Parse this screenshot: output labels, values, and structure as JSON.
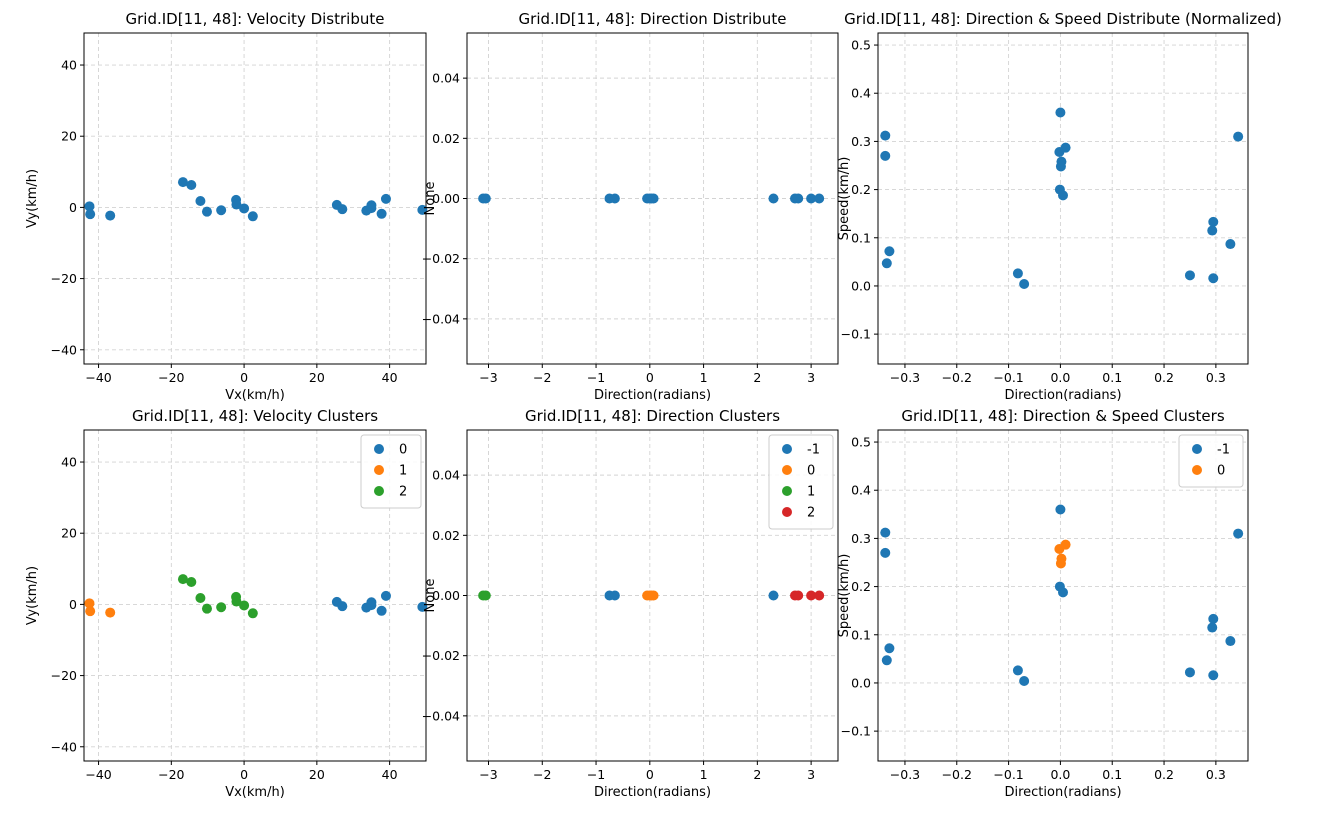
{
  "colors": {
    "c0": "#1f77b4",
    "c1": "#ff7f0e",
    "c2": "#2ca02c",
    "c3": "#d62728",
    "grid": "#d3d3d3"
  },
  "chart_data": [
    {
      "id": "vel-dist",
      "type": "scatter",
      "title": "Grid.ID[11, 48]: Velocity Distribute",
      "xlabel": "Vx(km/h)",
      "ylabel": "Vy(km/h)",
      "xlim": [
        -44,
        50
      ],
      "ylim": [
        -44,
        49
      ],
      "xticks": [
        -40,
        -20,
        0,
        20,
        40
      ],
      "yticks": [
        -40,
        -20,
        0,
        20,
        40
      ],
      "grid": true,
      "legend": null,
      "series": [
        {
          "color": "c0",
          "points": [
            [
              -42.5,
              0.3
            ],
            [
              -42.3,
              -1.9
            ],
            [
              -36.8,
              -2.3
            ],
            [
              -16.8,
              7.1
            ],
            [
              -14.5,
              6.3
            ],
            [
              -12,
              1.8
            ],
            [
              -10.2,
              -1.2
            ],
            [
              -6.3,
              -0.8
            ],
            [
              -2.2,
              2.1
            ],
            [
              -2.1,
              0.8
            ],
            [
              0,
              -0.3
            ],
            [
              2.4,
              -2.5
            ],
            [
              25.5,
              0.7
            ],
            [
              27,
              -0.5
            ],
            [
              33.6,
              -0.9
            ],
            [
              35,
              0.6
            ],
            [
              35,
              -0.2
            ],
            [
              37.8,
              -1.8
            ],
            [
              39,
              2.4
            ],
            [
              49,
              -0.7
            ]
          ]
        }
      ]
    },
    {
      "id": "dir-dist",
      "type": "scatter",
      "title": "Grid.ID[11, 48]: Direction Distribute",
      "xlabel": "Direction(radians)",
      "ylabel": "None",
      "xlim": [
        -3.4,
        3.5
      ],
      "ylim": [
        -0.055,
        0.055
      ],
      "xticks": [
        -3,
        -2,
        -1,
        0,
        1,
        2,
        3
      ],
      "yticks": [
        -0.04,
        -0.02,
        0.0,
        0.02,
        0.04
      ],
      "ytickfmt": 2,
      "grid": true,
      "legend": null,
      "series": [
        {
          "color": "c0",
          "points": [
            [
              -3.1,
              0
            ],
            [
              -3.05,
              0
            ],
            [
              -0.75,
              0
            ],
            [
              -0.65,
              0
            ],
            [
              -0.05,
              0
            ],
            [
              0,
              0
            ],
            [
              0.03,
              0
            ],
            [
              0.07,
              0
            ],
            [
              2.3,
              0
            ],
            [
              2.7,
              0
            ],
            [
              2.76,
              0
            ],
            [
              3.0,
              0
            ],
            [
              3.15,
              0
            ]
          ]
        }
      ]
    },
    {
      "id": "dirspeed-dist",
      "type": "scatter",
      "title": "Grid.ID[11, 48]: Direction & Speed Distribute (Normalized)",
      "xlabel": "Direction(radians)",
      "ylabel": "Speed(km/h)",
      "xlim": [
        -0.352,
        0.362
      ],
      "ylim": [
        -0.162,
        0.525
      ],
      "xticks": [
        -0.3,
        -0.2,
        -0.1,
        0.0,
        0.1,
        0.2,
        0.3
      ],
      "yticks": [
        -0.1,
        0.0,
        0.1,
        0.2,
        0.3,
        0.4,
        0.5
      ],
      "xtickfmt": 1,
      "ytickfmt": 1,
      "grid": true,
      "legend": null,
      "series": [
        {
          "color": "c0",
          "points": [
            [
              -0.338,
              0.312
            ],
            [
              -0.338,
              0.27
            ],
            [
              -0.33,
              0.072
            ],
            [
              -0.335,
              0.047
            ],
            [
              -0.082,
              0.026
            ],
            [
              -0.07,
              0.004
            ],
            [
              0.0,
              0.36
            ],
            [
              -0.002,
              0.278
            ],
            [
              0.01,
              0.287
            ],
            [
              0.002,
              0.258
            ],
            [
              0.001,
              0.248
            ],
            [
              -0.001,
              0.2
            ],
            [
              0.005,
              0.188
            ],
            [
              0.25,
              0.022
            ],
            [
              0.295,
              0.133
            ],
            [
              0.293,
              0.115
            ],
            [
              0.295,
              0.016
            ],
            [
              0.328,
              0.087
            ],
            [
              0.343,
              0.31
            ]
          ]
        }
      ]
    },
    {
      "id": "vel-clusters",
      "type": "scatter",
      "title": "Grid.ID[11, 48]: Velocity Clusters",
      "xlabel": "Vx(km/h)",
      "ylabel": "Vy(km/h)",
      "xlim": [
        -44,
        50
      ],
      "ylim": [
        -44,
        49
      ],
      "xticks": [
        -40,
        -20,
        0,
        20,
        40
      ],
      "yticks": [
        -40,
        -20,
        0,
        20,
        40
      ],
      "grid": true,
      "legend": "top-right",
      "series": [
        {
          "name": "0",
          "color": "c0",
          "points": [
            [
              25.5,
              0.7
            ],
            [
              27,
              -0.5
            ],
            [
              33.6,
              -0.9
            ],
            [
              35,
              0.6
            ],
            [
              35,
              -0.2
            ],
            [
              37.8,
              -1.8
            ],
            [
              39,
              2.4
            ],
            [
              49,
              -0.7
            ]
          ]
        },
        {
          "name": "1",
          "color": "c1",
          "points": [
            [
              -42.5,
              0.3
            ],
            [
              -42.3,
              -1.9
            ],
            [
              -36.8,
              -2.3
            ]
          ]
        },
        {
          "name": "2",
          "color": "c2",
          "points": [
            [
              -16.8,
              7.1
            ],
            [
              -14.5,
              6.3
            ],
            [
              -12,
              1.8
            ],
            [
              -10.2,
              -1.2
            ],
            [
              -6.3,
              -0.8
            ],
            [
              -2.2,
              2.1
            ],
            [
              -2.1,
              0.8
            ],
            [
              0,
              -0.3
            ],
            [
              2.4,
              -2.5
            ]
          ]
        }
      ]
    },
    {
      "id": "dir-clusters",
      "type": "scatter",
      "title": "Grid.ID[11, 48]: Direction Clusters",
      "xlabel": "Direction(radians)",
      "ylabel": "None",
      "xlim": [
        -3.4,
        3.5
      ],
      "ylim": [
        -0.055,
        0.055
      ],
      "xticks": [
        -3,
        -2,
        -1,
        0,
        1,
        2,
        3
      ],
      "yticks": [
        -0.04,
        -0.02,
        0.0,
        0.02,
        0.04
      ],
      "ytickfmt": 2,
      "grid": true,
      "legend": "top-right",
      "series": [
        {
          "name": "-1",
          "color": "c0",
          "points": [
            [
              -0.75,
              0
            ],
            [
              -0.65,
              0
            ],
            [
              2.3,
              0
            ]
          ]
        },
        {
          "name": "0",
          "color": "c1",
          "points": [
            [
              -0.05,
              0
            ],
            [
              0,
              0
            ],
            [
              0.03,
              0
            ],
            [
              0.07,
              0
            ]
          ]
        },
        {
          "name": "1",
          "color": "c2",
          "points": [
            [
              -3.1,
              0
            ],
            [
              -3.05,
              0
            ]
          ]
        },
        {
          "name": "2",
          "color": "c3",
          "points": [
            [
              2.7,
              0
            ],
            [
              2.76,
              0
            ],
            [
              3.0,
              0
            ],
            [
              3.15,
              0
            ]
          ]
        }
      ]
    },
    {
      "id": "dirspeed-clusters",
      "type": "scatter",
      "title": "Grid.ID[11, 48]: Direction & Speed Clusters",
      "xlabel": "Direction(radians)",
      "ylabel": "Speed(km/h)",
      "xlim": [
        -0.352,
        0.362
      ],
      "ylim": [
        -0.162,
        0.525
      ],
      "xticks": [
        -0.3,
        -0.2,
        -0.1,
        0.0,
        0.1,
        0.2,
        0.3
      ],
      "yticks": [
        -0.1,
        0.0,
        0.1,
        0.2,
        0.3,
        0.4,
        0.5
      ],
      "xtickfmt": 1,
      "ytickfmt": 1,
      "grid": true,
      "legend": "top-right",
      "series": [
        {
          "name": "-1",
          "color": "c0",
          "points": [
            [
              -0.338,
              0.312
            ],
            [
              -0.338,
              0.27
            ],
            [
              -0.33,
              0.072
            ],
            [
              -0.335,
              0.047
            ],
            [
              -0.082,
              0.026
            ],
            [
              -0.07,
              0.004
            ],
            [
              0.0,
              0.36
            ],
            [
              -0.001,
              0.2
            ],
            [
              0.005,
              0.188
            ],
            [
              0.25,
              0.022
            ],
            [
              0.295,
              0.133
            ],
            [
              0.293,
              0.115
            ],
            [
              0.295,
              0.016
            ],
            [
              0.328,
              0.087
            ],
            [
              0.343,
              0.31
            ]
          ]
        },
        {
          "name": "0",
          "color": "c1",
          "points": [
            [
              -0.002,
              0.278
            ],
            [
              0.01,
              0.287
            ],
            [
              0.002,
              0.258
            ],
            [
              0.001,
              0.248
            ]
          ]
        }
      ]
    }
  ]
}
